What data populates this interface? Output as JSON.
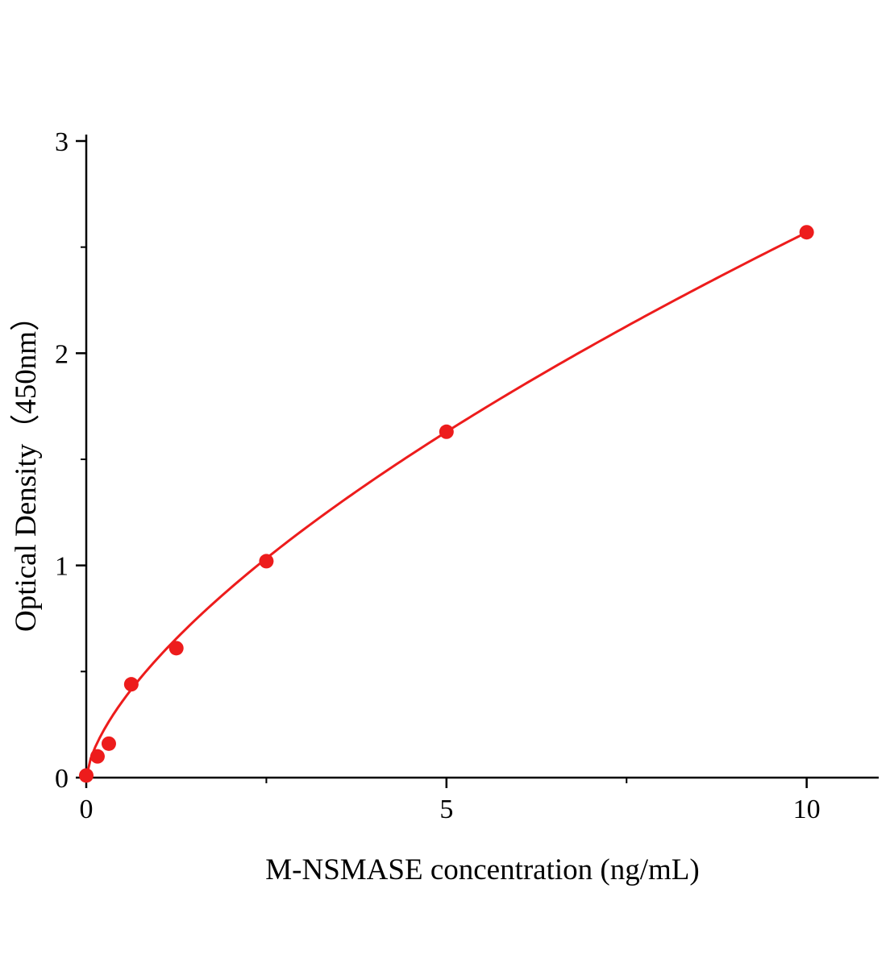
{
  "chart_data": {
    "type": "scatter",
    "title": "",
    "xlabel": "M-NSMASE concentration (ng/mL)",
    "ylabel": "Optical Density（450nm）",
    "x": [
      0,
      0.156,
      0.313,
      0.625,
      1.25,
      2.5,
      5,
      10
    ],
    "y": [
      0.01,
      0.1,
      0.16,
      0.44,
      0.61,
      1.02,
      1.63,
      2.57
    ],
    "fit": {
      "type": "power",
      "a": 0.566,
      "b": 0.657
    },
    "xlim": [
      0,
      11
    ],
    "ylim": [
      0,
      3
    ],
    "xticks": [
      0,
      5,
      10
    ],
    "yticks": [
      0,
      1,
      2,
      3
    ],
    "xminor": [
      2.5,
      7.5
    ],
    "yminor": [
      0.5,
      1.5,
      2.5
    ],
    "grid": false,
    "legend": "none",
    "curve_color": "#ed1c1c",
    "marker_color": "#ed1c1c",
    "axis_color": "#000000",
    "marker_radius": 9,
    "line_width": 3
  }
}
